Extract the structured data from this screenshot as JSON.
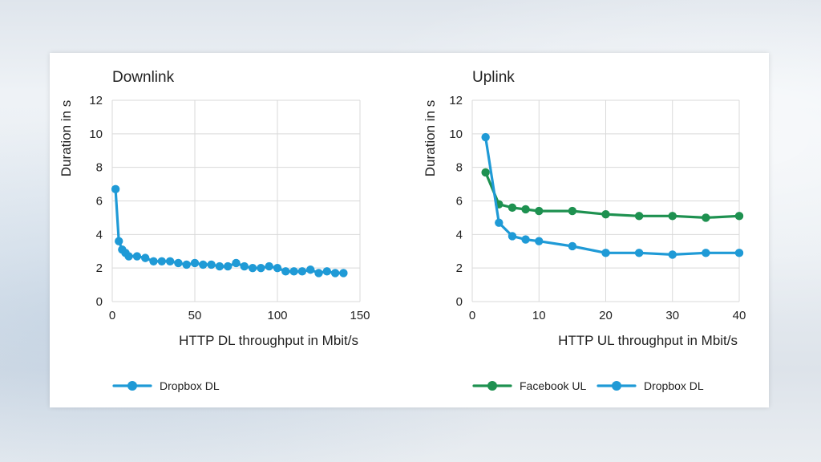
{
  "chart_data": [
    {
      "type": "line",
      "title": "Downlink",
      "xlabel": "HTTP DL throughput in Mbit/s",
      "ylabel": "Duration in s",
      "xlim": [
        0,
        150
      ],
      "ylim": [
        0,
        12
      ],
      "xticks": [
        "0",
        "50",
        "100",
        "150"
      ],
      "yticks": [
        "0",
        "2",
        "4",
        "6",
        "8",
        "10",
        "12"
      ],
      "grid": true,
      "legend_position": "bottom-left",
      "series": [
        {
          "name": "Dropbox DL",
          "color": "#1f9ad6",
          "x": [
            2,
            4,
            6,
            8,
            10,
            15,
            20,
            25,
            30,
            35,
            40,
            45,
            50,
            55,
            60,
            65,
            70,
            75,
            80,
            85,
            90,
            95,
            100,
            105,
            110,
            115,
            120,
            125,
            130,
            135,
            140
          ],
          "y": [
            6.7,
            3.6,
            3.1,
            2.9,
            2.7,
            2.7,
            2.6,
            2.4,
            2.4,
            2.4,
            2.3,
            2.2,
            2.3,
            2.2,
            2.2,
            2.1,
            2.1,
            2.3,
            2.1,
            2.0,
            2.0,
            2.1,
            2.0,
            1.8,
            1.8,
            1.8,
            1.9,
            1.7,
            1.8,
            1.7,
            1.7
          ]
        }
      ]
    },
    {
      "type": "line",
      "title": "Uplink",
      "xlabel": "HTTP UL throughput in Mbit/s",
      "ylabel": "Duration in s",
      "xlim": [
        0,
        40
      ],
      "ylim": [
        0,
        12
      ],
      "xticks": [
        "0",
        "10",
        "20",
        "30",
        "40"
      ],
      "yticks": [
        "0",
        "2",
        "4",
        "6",
        "8",
        "10",
        "12"
      ],
      "grid": true,
      "legend_position": "bottom",
      "series": [
        {
          "name": "Facebook UL",
          "color": "#1e9150",
          "x": [
            2,
            4,
            6,
            8,
            10,
            15,
            20,
            25,
            30,
            35,
            40
          ],
          "y": [
            7.7,
            5.8,
            5.6,
            5.5,
            5.4,
            5.4,
            5.2,
            5.1,
            5.1,
            5.0,
            5.1
          ]
        },
        {
          "name": "Dropbox DL",
          "color": "#1f9ad6",
          "x": [
            2,
            4,
            6,
            8,
            10,
            15,
            20,
            25,
            30,
            35,
            40
          ],
          "y": [
            9.8,
            4.7,
            3.9,
            3.7,
            3.6,
            3.3,
            2.9,
            2.9,
            2.8,
            2.9,
            2.9
          ]
        }
      ]
    }
  ]
}
